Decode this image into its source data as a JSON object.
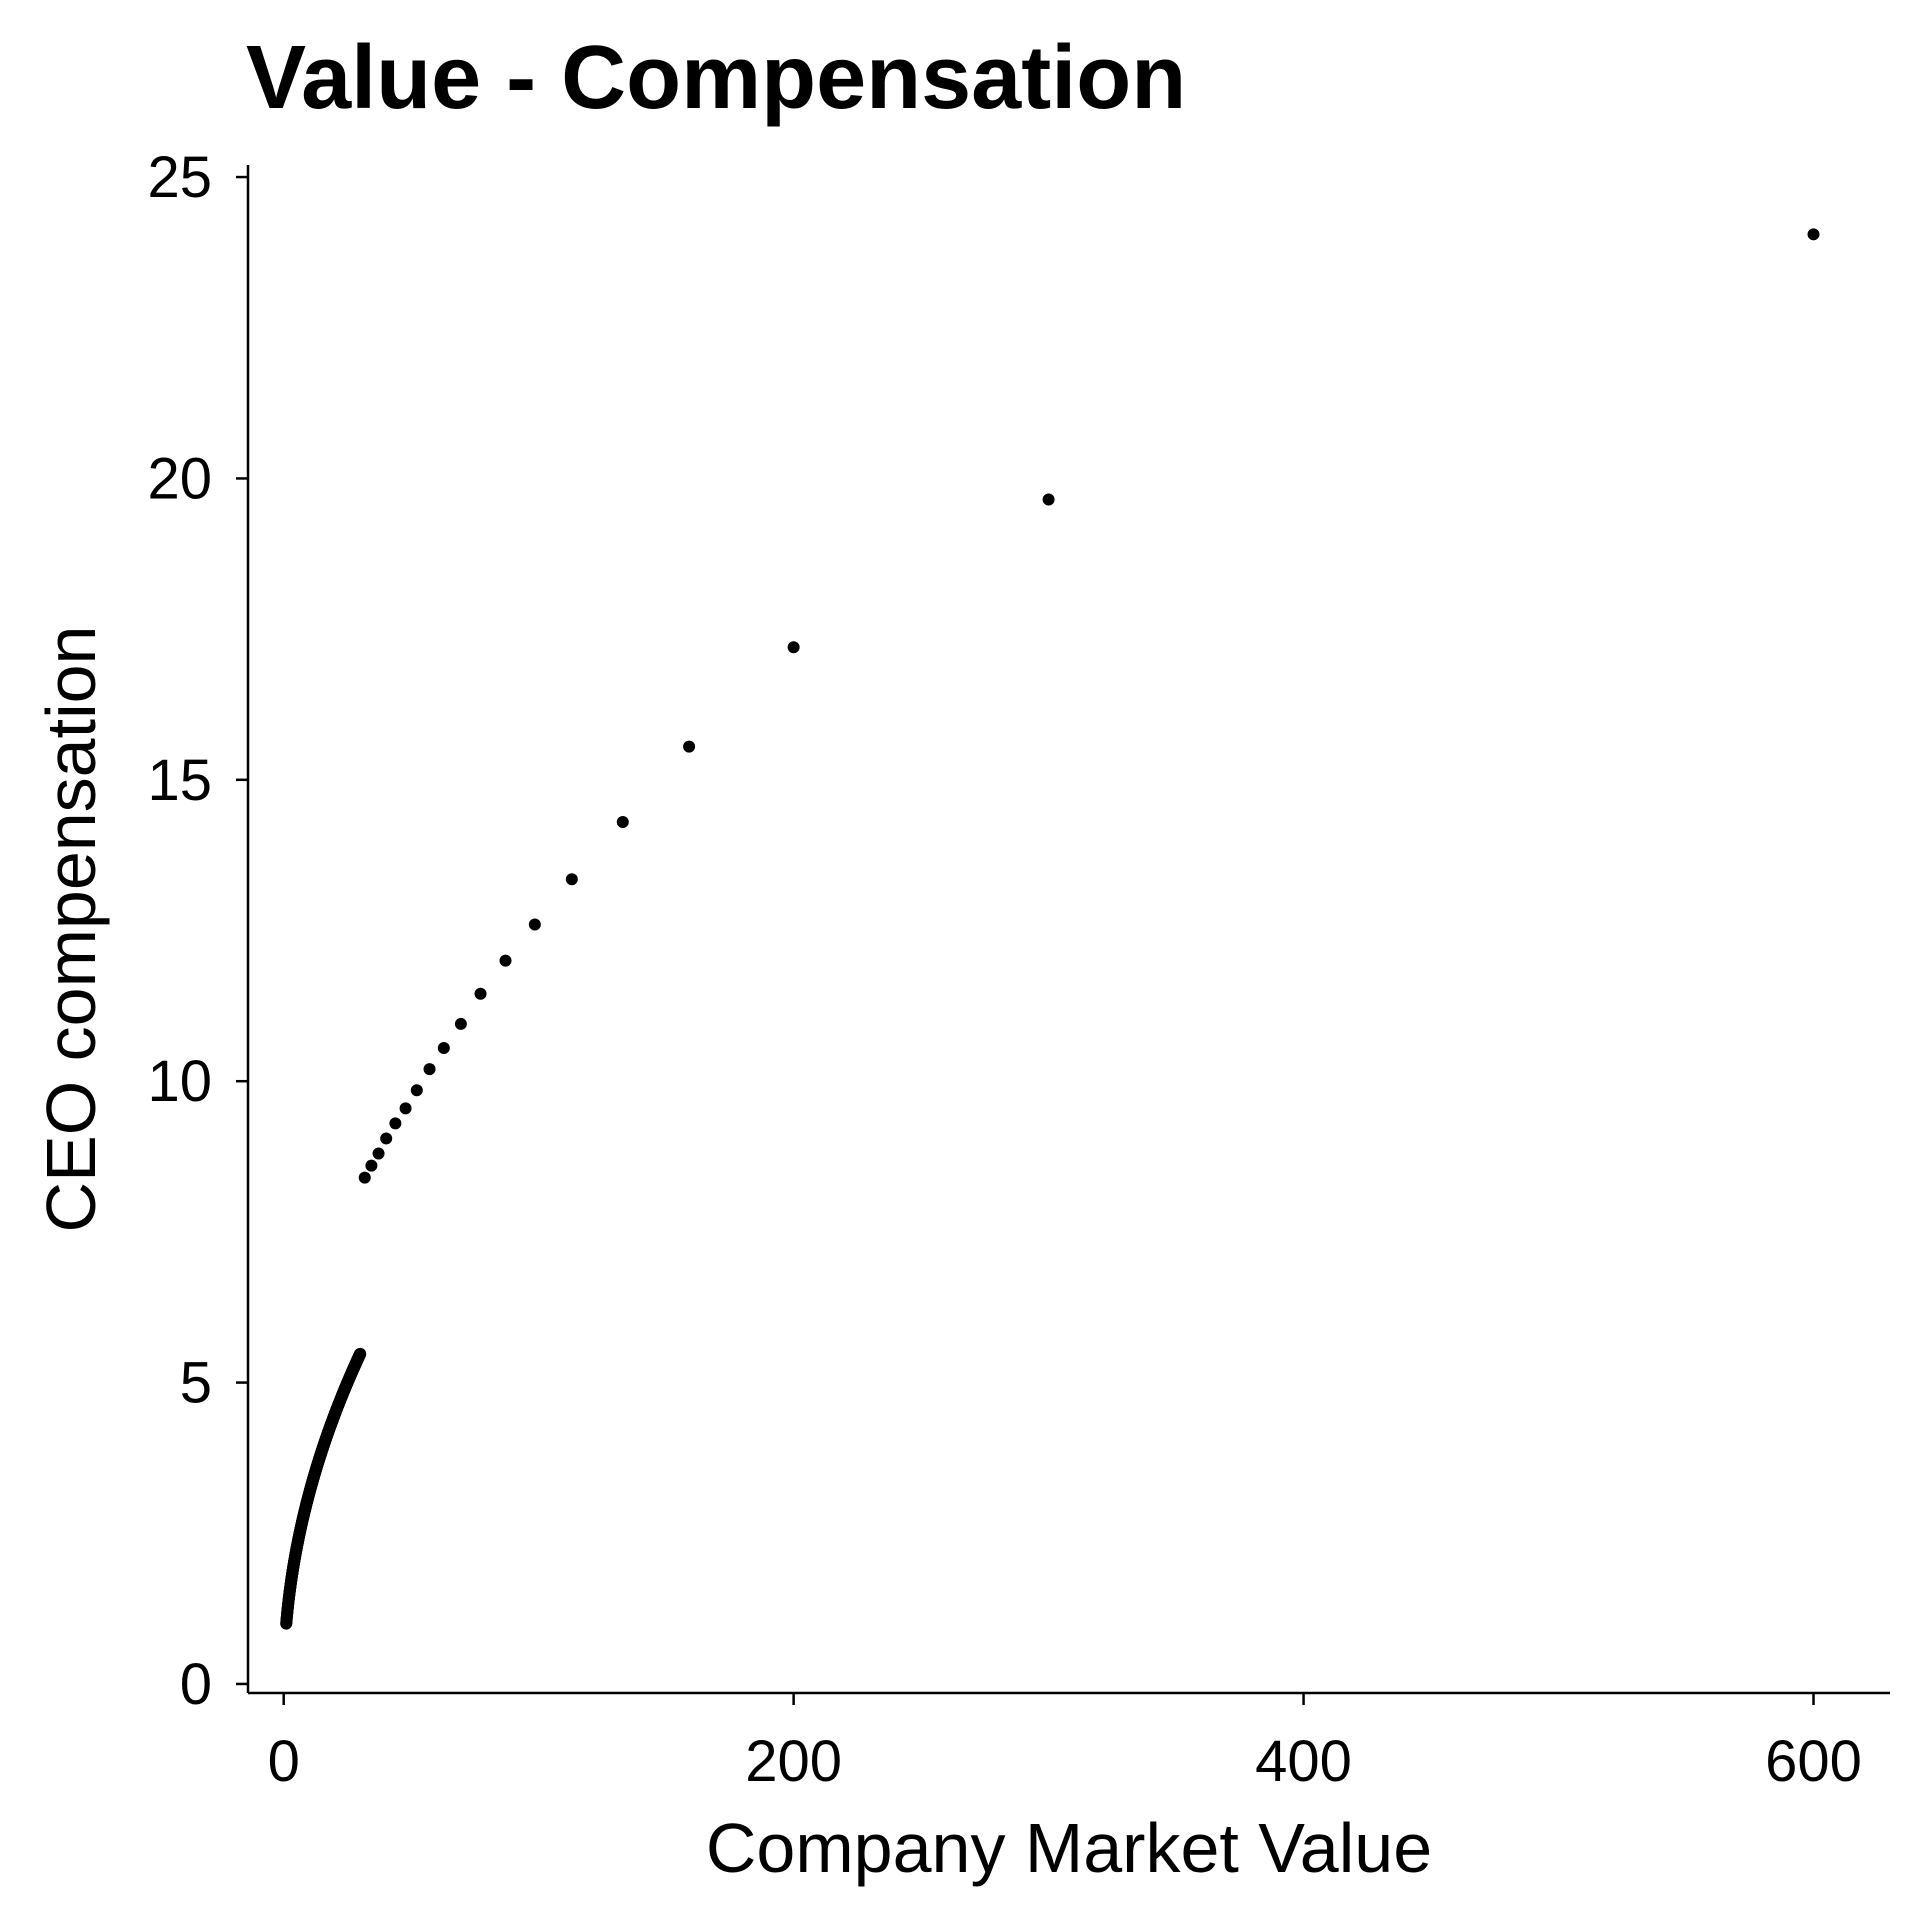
{
  "chart_data": {
    "type": "scatter",
    "title": "Value - Compensation",
    "xlabel": "Company Market Value",
    "ylabel": "CEO compensation",
    "xlim": [
      -14,
      630
    ],
    "ylim": [
      -0.15,
      25.2
    ],
    "xticks": [
      0,
      200,
      400,
      600
    ],
    "yticks": [
      0,
      5,
      10,
      15,
      20,
      25
    ],
    "xtick_labels": [
      "0",
      "200",
      "400",
      "600"
    ],
    "ytick_labels": [
      "0",
      "5",
      "10",
      "15",
      "20",
      "25"
    ],
    "grid": false,
    "marker_color": "#000000",
    "dense_curve": {
      "x_start": 1,
      "x_end": 30,
      "count": 800,
      "y_formula": "sqrt(x)"
    },
    "points": [
      {
        "x": 31.8,
        "y": 8.4
      },
      {
        "x": 34.4,
        "y": 8.6
      },
      {
        "x": 37.2,
        "y": 8.8
      },
      {
        "x": 40.2,
        "y": 9.05
      },
      {
        "x": 43.8,
        "y": 9.3
      },
      {
        "x": 47.8,
        "y": 9.55
      },
      {
        "x": 52.2,
        "y": 9.85
      },
      {
        "x": 57.2,
        "y": 10.2
      },
      {
        "x": 62.8,
        "y": 10.55
      },
      {
        "x": 69.5,
        "y": 10.95
      },
      {
        "x": 77.2,
        "y": 11.45
      },
      {
        "x": 87,
        "y": 12
      },
      {
        "x": 98.5,
        "y": 12.6
      },
      {
        "x": 113,
        "y": 13.35
      },
      {
        "x": 133,
        "y": 14.3
      },
      {
        "x": 159,
        "y": 15.55
      },
      {
        "x": 200,
        "y": 17.2
      },
      {
        "x": 300,
        "y": 19.65
      },
      {
        "x": 600,
        "y": 24.05
      }
    ]
  }
}
